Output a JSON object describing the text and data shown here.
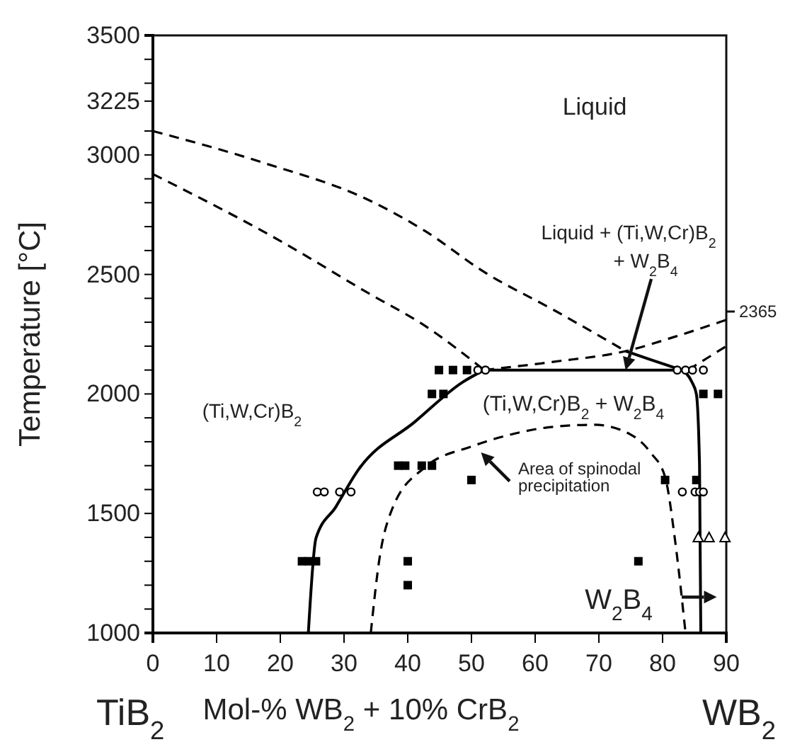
{
  "chart_data": {
    "type": "line",
    "xlabel": "Mol-%  WB$_{2}$ + 10% CrB$_{2}$",
    "ylabel": "Temperature  [°C]",
    "xlim": [
      0,
      90
    ],
    "xticks": [
      0,
      10,
      20,
      30,
      40,
      50,
      60,
      70,
      80,
      90
    ],
    "ylim": [
      1000,
      3500
    ],
    "yticks": [
      1000,
      {
        "value": 1100,
        "label": null
      },
      {
        "value": 1200,
        "label": null
      },
      {
        "value": 1300,
        "label": null
      },
      {
        "value": 1400,
        "label": null
      },
      1500,
      {
        "value": 1600,
        "label": null
      },
      {
        "value": 1700,
        "label": null
      },
      {
        "value": 1800,
        "label": null
      },
      {
        "value": 1900,
        "label": null
      },
      2000,
      {
        "value": 2100,
        "label": null
      },
      {
        "value": 2200,
        "label": null
      },
      {
        "value": 2300,
        "label": null
      },
      {
        "value": 2400,
        "label": null
      },
      2500,
      {
        "value": 2600,
        "label": null
      },
      {
        "value": 2700,
        "label": null
      },
      {
        "value": 2800,
        "label": null
      },
      {
        "value": 2900,
        "label": null
      },
      3000,
      {
        "value": 3100,
        "label": null
      },
      3225,
      {
        "value": 3300,
        "label": null
      },
      {
        "value": 3400,
        "label": null
      },
      3500
    ],
    "grid": false,
    "series": [
      {
        "type": "line",
        "line_style": "dashed",
        "color": "#000000",
        "x": [
          0,
          17,
          34.2,
          42.7,
          52,
          63,
          74.2
        ],
        "values": [
          3100,
          2970,
          2807,
          2682,
          2510,
          2350,
          2179
        ]
      },
      {
        "type": "line",
        "line_style": "dashed",
        "color": "#000000",
        "x": [
          0,
          20,
          33.8,
          42.7,
          52
        ],
        "values": [
          2920,
          2640,
          2422,
          2285,
          2100
        ]
      },
      {
        "type": "line",
        "line_style": "dashed",
        "color": "#000000",
        "x": [
          52,
          63,
          74.2,
          82,
          90
        ],
        "values": [
          2100,
          2135,
          2179,
          2240,
          2310
        ]
      },
      {
        "type": "line",
        "line_style": "dashed",
        "color": "#000000",
        "x": [
          84,
          87,
          90
        ],
        "values": [
          2100,
          2150,
          2200
        ]
      },
      {
        "type": "line",
        "line_style": "solid",
        "color": "#000000",
        "x": [
          74.2,
          78.5,
          83
        ],
        "values": [
          2179,
          2140,
          2100
        ]
      },
      {
        "type": "line",
        "line_style": "solid",
        "color": "#000000",
        "x": [
          52,
          83
        ],
        "values": [
          2100,
          2100
        ]
      },
      {
        "type": "line",
        "line_style": "solid",
        "color": "#000000",
        "x": [
          24.4,
          25.6,
          28.7,
          32.2,
          41.1,
          48.6,
          52
        ],
        "values": [
          1000,
          1397,
          1527,
          1681,
          1883,
          2049,
          2100
        ]
      },
      {
        "type": "line",
        "line_style": "solid",
        "color": "#000000",
        "x": [
          83,
          84.6,
          85.3,
          85.8,
          86
        ],
        "values": [
          2100,
          2050,
          2000,
          1700,
          1000
        ]
      },
      {
        "type": "line",
        "line_style": "dashed",
        "color": "#000000",
        "x": [
          34.2,
          35.5,
          37.5,
          42.7,
          50,
          56,
          62,
          69.3,
          75,
          78.2,
          80.4,
          82,
          83.6
        ],
        "values": [
          1000,
          1300,
          1515,
          1693,
          1780,
          1829,
          1860,
          1871,
          1830,
          1752,
          1652,
          1379,
          1000
        ]
      },
      {
        "type": "scatter",
        "marker": "square",
        "color": "#000000",
        "x": [
          23.4,
          24.5,
          25.6,
          40,
          40,
          38.5,
          39.6,
          42.2,
          43.8,
          50,
          43.8,
          45.6,
          44.9,
          47.1,
          49.3,
          86.4,
          88.7,
          80.4,
          85.3,
          76.2
        ],
        "values": [
          1300,
          1300,
          1300,
          1300,
          1200,
          1700,
          1700,
          1700,
          1700,
          1640,
          2000,
          2000,
          2100,
          2100,
          2100,
          2000,
          2000,
          1640,
          1640,
          1300
        ]
      },
      {
        "type": "scatter",
        "marker": "circle",
        "color": "#000000",
        "x": [
          25.8,
          26.9,
          29.3,
          31.1,
          83.1,
          85.1,
          85.8,
          86.4,
          82.3,
          83.6,
          84.7,
          86.4,
          51,
          52.2
        ],
        "values": [
          1590,
          1590,
          1590,
          1590,
          1590,
          1590,
          1590,
          1590,
          2100,
          2100,
          2100,
          2100,
          2100,
          2100
        ]
      },
      {
        "type": "scatter",
        "marker": "triangle",
        "color": "#000000",
        "x": [
          85.6,
          87.3,
          89.8
        ],
        "values": [
          1400,
          1400,
          1400
        ]
      }
    ],
    "annotations": [
      "Liquid",
      "Liquid + (Ti,W,Cr)B$_{2}$",
      {
        "text": "+ W$_{2}$B$_{4}$",
        "x": 74.2,
        "y": 2100
      },
      "(Ti,W,Cr)B$_{2}$",
      "(Ti,W,Cr)B$_{2}$ + W$_{2}$B$_{4}$",
      "Area of spinodal",
      "precipitation",
      "W$_{2}$B$_{4}$",
      "2365",
      "TiB$_{2}$",
      "WB$_{2}$"
    ]
  }
}
